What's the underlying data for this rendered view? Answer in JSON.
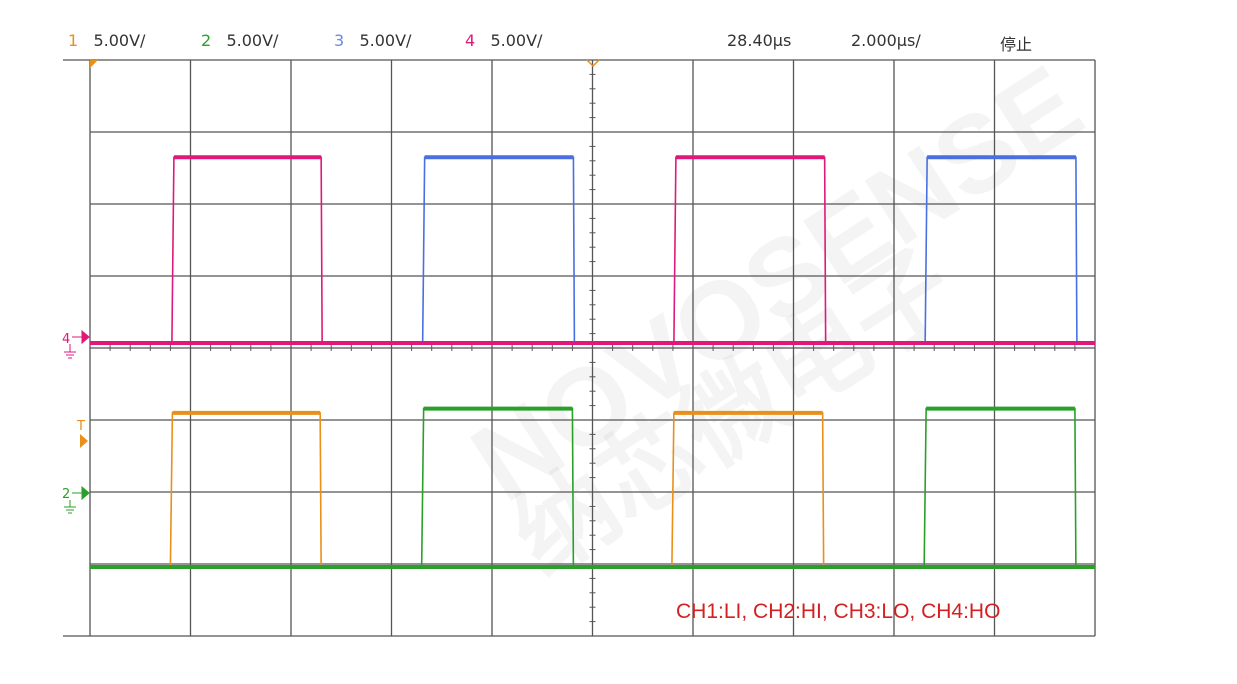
{
  "header": {
    "channels": [
      {
        "num": "1",
        "scale": "5.00V/",
        "color": "#e8901a"
      },
      {
        "num": "2",
        "scale": "5.00V/",
        "color": "#2aa02a"
      },
      {
        "num": "3",
        "scale": "5.00V/",
        "color": "#6a8ae6"
      },
      {
        "num": "4",
        "scale": "5.00V/",
        "color": "#e0187a"
      }
    ],
    "trigger_position": "28.40µs",
    "timebase": "2.000µs/",
    "status": "停止"
  },
  "watermark": {
    "brand": "NOVOSENSE",
    "brand_cn": "纳芯微电子"
  },
  "markers": {
    "ch4_ground": "4",
    "ch2_ground": "2",
    "trigger": "T"
  },
  "annotation": "CH1:LI, CH2:HI, CH3:LO, CH4:HO",
  "chart_data": {
    "type": "line",
    "title": "",
    "xlabel": "",
    "ylabel": "",
    "x_unit": "µs",
    "y_unit": "V",
    "divisions": {
      "horizontal": 10,
      "vertical": 8
    },
    "time_per_div_us": 2.0,
    "volts_per_div": 5.0,
    "xlim": [
      0,
      20
    ],
    "grid": true,
    "series": [
      {
        "name": "CH1:LI",
        "channel": 1,
        "color": "#e8901a",
        "low": 0,
        "high": 10.7,
        "pulses_us": [
          [
            1.6,
            4.58
          ],
          [
            11.58,
            14.58
          ]
        ]
      },
      {
        "name": "CH2:HI",
        "channel": 2,
        "color": "#2aa02a",
        "low": 0,
        "high": 11.0,
        "pulses_us": [
          [
            6.6,
            9.6
          ],
          [
            16.6,
            19.6
          ]
        ]
      },
      {
        "name": "CH3:LO",
        "channel": 3,
        "color": "#4a6fe0",
        "low": 0,
        "high": 12.9,
        "pulses_us": [
          [
            6.62,
            9.62
          ],
          [
            16.62,
            19.62
          ]
        ]
      },
      {
        "name": "CH4:HO",
        "channel": 4,
        "color": "#e0187a",
        "low": 0,
        "high": 12.9,
        "pulses_us": [
          [
            1.63,
            4.6
          ],
          [
            11.62,
            14.62
          ]
        ]
      }
    ]
  }
}
